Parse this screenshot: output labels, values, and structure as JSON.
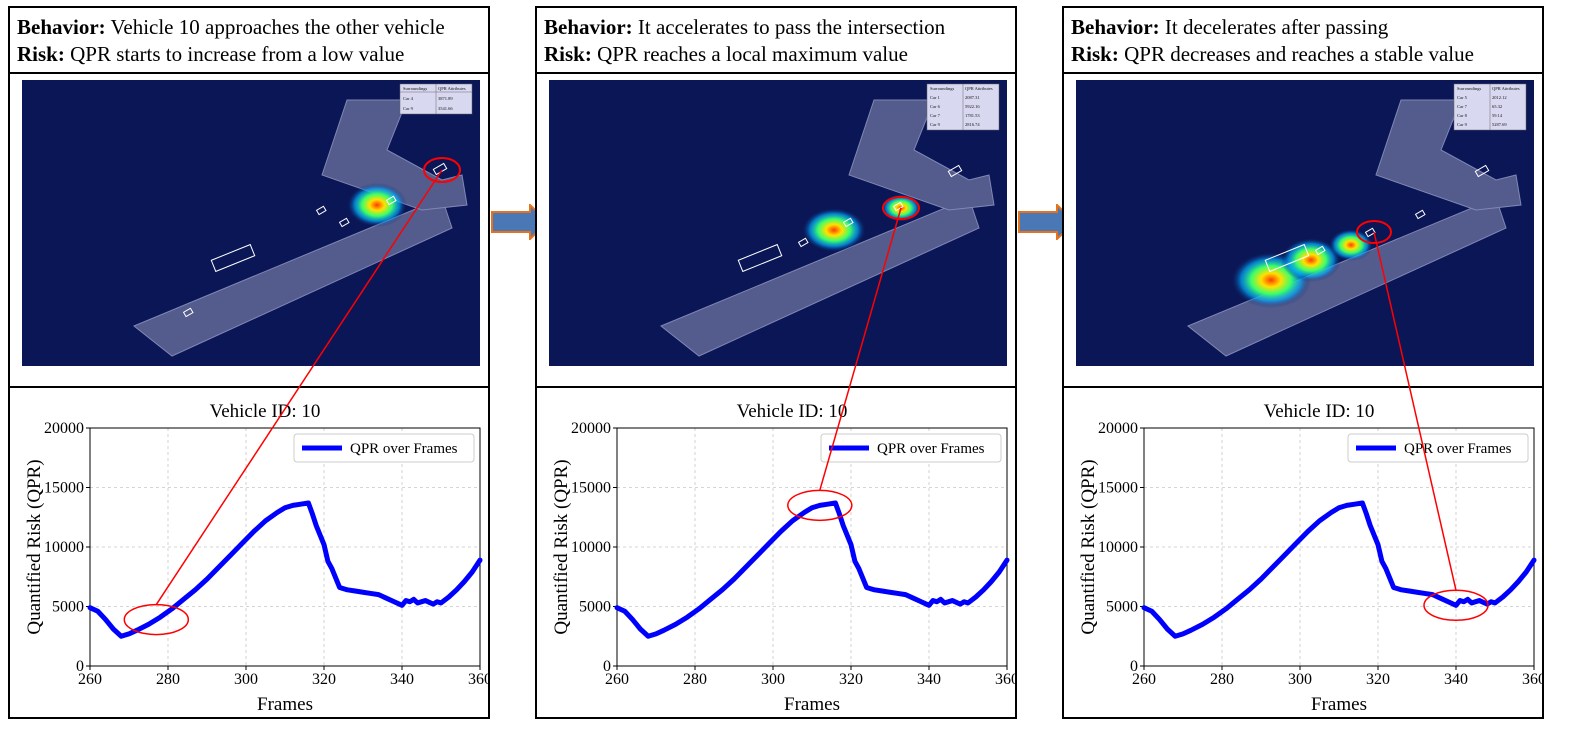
{
  "colors": {
    "series": "#0000ff",
    "highlight": "#ff0000",
    "scene_bg": "#0b1656",
    "arrow_fill": "#4a78b5",
    "arrow_stroke": "#e6731c"
  },
  "panels": [
    {
      "behavior_label": "Behavior:",
      "behavior_text": "Vehicle 10 approaches the other vehicle",
      "risk_label": "Risk:",
      "risk_text": "QPR starts to increase from a low value",
      "scene_table": {
        "headers": [
          "Surroundings",
          "QPR Attributes"
        ],
        "rows": [
          [
            "Car 4",
            "3871.89"
          ],
          [
            "Car 9",
            "3541.66"
          ]
        ]
      },
      "highlight_frame": 277
    },
    {
      "behavior_label": "Behavior:",
      "behavior_text": "It accelerates to pass the intersection",
      "risk_label": "Risk:",
      "risk_text": "QPR reaches a local maximum value",
      "scene_table": {
        "headers": [
          "Surroundings",
          "QPR Attributes"
        ],
        "rows": [
          [
            "Car 1",
            "2087.31"
          ],
          [
            "Car 6",
            "5922.16"
          ],
          [
            "Car 7",
            "1781.53"
          ],
          [
            "Car 9",
            "2816.74"
          ]
        ]
      },
      "highlight_frame": 312
    },
    {
      "behavior_label": "Behavior:",
      "behavior_text": "It decelerates after passing",
      "risk_label": "Risk:",
      "risk_text": "QPR decreases and reaches a stable value",
      "scene_table": {
        "headers": [
          "Surroundings",
          "QPR Attributes"
        ],
        "rows": [
          [
            "Car 5",
            "2012.12"
          ],
          [
            "Car 7",
            "65.32"
          ],
          [
            "Car 8",
            "59.14"
          ],
          [
            "Car 9",
            "5287.69"
          ]
        ]
      },
      "highlight_frame": 340
    }
  ],
  "chart_data": {
    "type": "line",
    "title": "Vehicle ID: 10",
    "xlabel": "Frames",
    "ylabel": "Quantified Risk (QPR)",
    "xlim": [
      260,
      360
    ],
    "ylim": [
      0,
      20000
    ],
    "xticks": [
      260,
      280,
      300,
      320,
      340,
      360
    ],
    "yticks": [
      0,
      5000,
      10000,
      15000,
      20000
    ],
    "grid": true,
    "legend": "QPR over Frames",
    "legend_position": "top-right",
    "series": [
      {
        "name": "QPR over Frames",
        "x": [
          260,
          262,
          264,
          266,
          268,
          270,
          272,
          275,
          278,
          281,
          284,
          287,
          290,
          293,
          296,
          299,
          302,
          305,
          308,
          310,
          312,
          314,
          316,
          317,
          318,
          320,
          321,
          322,
          324,
          326,
          328,
          330,
          332,
          334,
          336,
          338,
          340,
          341,
          342,
          343,
          344,
          346,
          348,
          349,
          350,
          352,
          354,
          356,
          358,
          360
        ],
        "y": [
          4900,
          4600,
          3900,
          3100,
          2500,
          2700,
          3000,
          3500,
          4100,
          4800,
          5600,
          6400,
          7300,
          8300,
          9300,
          10300,
          11300,
          12200,
          12900,
          13300,
          13500,
          13600,
          13700,
          12800,
          11800,
          10200,
          8800,
          8200,
          6600,
          6400,
          6300,
          6200,
          6100,
          6000,
          5700,
          5400,
          5100,
          5500,
          5400,
          5600,
          5300,
          5500,
          5200,
          5400,
          5300,
          5800,
          6400,
          7100,
          7900,
          8900
        ]
      }
    ]
  }
}
